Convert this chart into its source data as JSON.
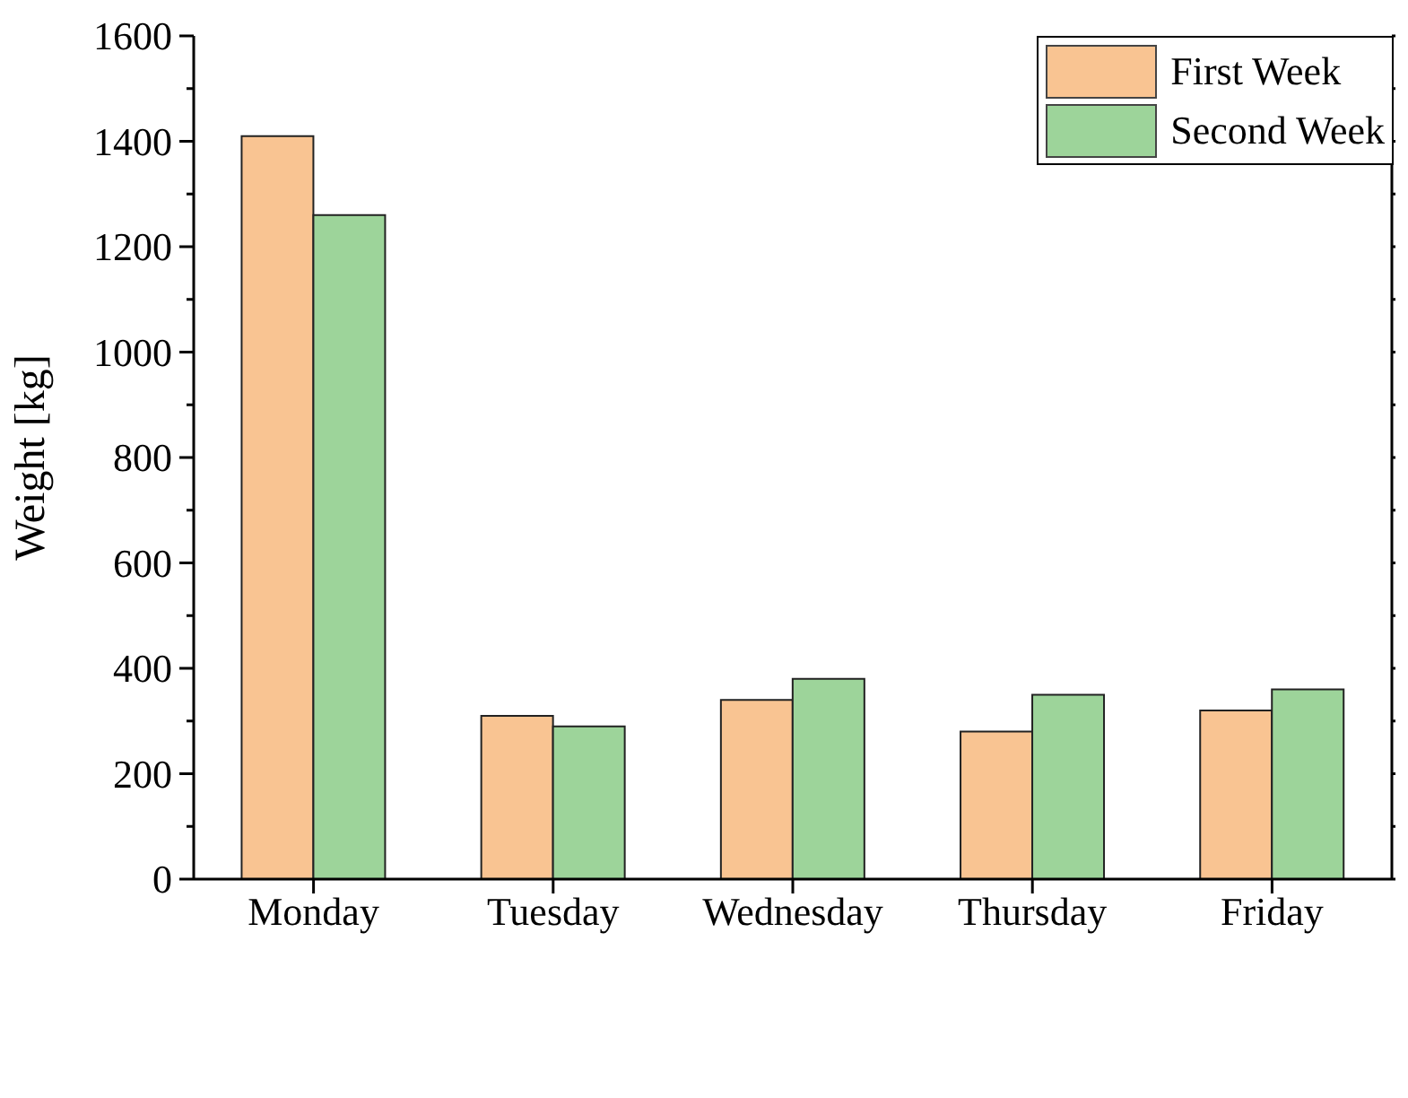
{
  "chart_data": {
    "type": "bar",
    "ylabel": "Weight [kg]",
    "categories": [
      "Monday",
      "Tuesday",
      "Wednesday",
      "Thursday",
      "Friday"
    ],
    "series": [
      {
        "name": "First Week",
        "color": "#f9c492",
        "values": [
          1410,
          310,
          340,
          280,
          320
        ]
      },
      {
        "name": "Second Week",
        "color": "#9dd49a",
        "values": [
          1260,
          290,
          380,
          350,
          360
        ]
      }
    ],
    "ylim": [
      0,
      1600
    ],
    "yticks": [
      0,
      {
        "value": 100,
        "label": null
      },
      200,
      {
        "value": 300,
        "label": null
      },
      400,
      {
        "value": 500,
        "label": null
      },
      600,
      {
        "value": 700,
        "label": null
      },
      800,
      {
        "value": 900,
        "label": null
      },
      1000,
      {
        "value": 1100,
        "label": null
      },
      1200,
      {
        "value": 1300,
        "label": null
      },
      1400,
      {
        "value": 1500,
        "label": null
      },
      1600
    ],
    "grid": false,
    "legend": "top right"
  }
}
